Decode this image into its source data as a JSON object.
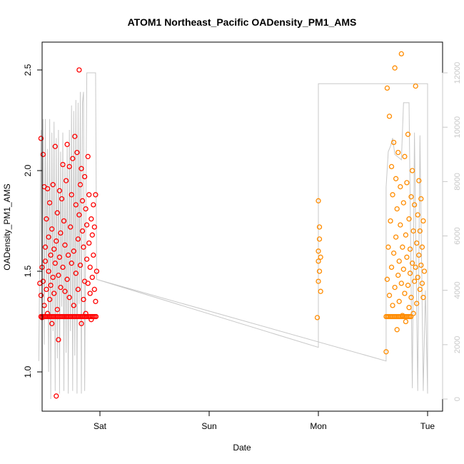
{
  "chart_data": {
    "type": "scatter",
    "title": "ATOM1 Northeast_Pacific OADensity_PM1_AMS",
    "xlabel": "Date",
    "ylabel": "OADensity_PM1_AMS",
    "x_ticks": [
      "Sat",
      "Sun",
      "Mon",
      "Tue"
    ],
    "y_ticks": [
      "1.0",
      "1.5",
      "2.0",
      "2.5"
    ],
    "ylim": [
      0.84,
      2.65
    ],
    "right_axis_ticks": [
      "0",
      "2000",
      "4000",
      "6000",
      "8000",
      "10000",
      "12000"
    ],
    "right_axis_range": [
      0,
      12500
    ],
    "grid": false,
    "legend": "none",
    "series": [
      {
        "color": "#ff0000",
        "marker": "open-circle",
        "points": [
          [
            -0.55,
            1.44
          ],
          [
            -0.54,
            1.38
          ],
          [
            -0.54,
            2.16
          ],
          [
            -0.53,
            1.52
          ],
          [
            -0.53,
            1.27
          ],
          [
            -0.52,
            2.08
          ],
          [
            -0.52,
            1.45
          ],
          [
            -0.51,
            1.92
          ],
          [
            -0.51,
            1.33
          ],
          [
            -0.5,
            1.55
          ],
          [
            -0.5,
            1.62
          ],
          [
            -0.49,
            1.41
          ],
          [
            -0.49,
            1.76
          ],
          [
            -0.48,
            1.91
          ],
          [
            -0.48,
            1.29
          ],
          [
            -0.47,
            1.5
          ],
          [
            -0.47,
            1.67
          ],
          [
            -0.46,
            1.36
          ],
          [
            -0.46,
            1.84
          ],
          [
            -0.45,
            1.58
          ],
          [
            -0.45,
            1.43
          ],
          [
            -0.44,
            1.71
          ],
          [
            -0.44,
            1.24
          ],
          [
            -0.43,
            1.93
          ],
          [
            -0.43,
            1.47
          ],
          [
            -0.42,
            1.61
          ],
          [
            -0.42,
            1.39
          ],
          [
            -0.41,
            1.54
          ],
          [
            -0.41,
            2.12
          ],
          [
            -0.4,
            0.88
          ],
          [
            -0.4,
            1.65
          ],
          [
            -0.39,
            1.31
          ],
          [
            -0.39,
            1.79
          ],
          [
            -0.38,
            1.16
          ],
          [
            -0.38,
            1.48
          ],
          [
            -0.37,
            1.9
          ],
          [
            -0.37,
            1.57
          ],
          [
            -0.36,
            1.69
          ],
          [
            -0.36,
            1.42
          ],
          [
            -0.35,
            1.86
          ],
          [
            -0.34,
            2.03
          ],
          [
            -0.34,
            1.52
          ],
          [
            -0.33,
            1.75
          ],
          [
            -0.32,
            1.4
          ],
          [
            -0.32,
            1.63
          ],
          [
            -0.31,
            1.95
          ],
          [
            -0.3,
            1.46
          ],
          [
            -0.3,
            2.13
          ],
          [
            -0.29,
            1.58
          ],
          [
            -0.28,
            1.37
          ],
          [
            -0.28,
            2.02
          ],
          [
            -0.27,
            1.72
          ],
          [
            -0.26,
            1.54
          ],
          [
            -0.26,
            1.88
          ],
          [
            -0.25,
            2.06
          ],
          [
            -0.24,
            1.6
          ],
          [
            -0.24,
            1.33
          ],
          [
            -0.23,
            2.17
          ],
          [
            -0.22,
            1.83
          ],
          [
            -0.22,
            1.49
          ],
          [
            -0.21,
            2.09
          ],
          [
            -0.2,
            1.66
          ],
          [
            -0.2,
            1.41
          ],
          [
            -0.19,
            2.5
          ],
          [
            -0.19,
            1.78
          ],
          [
            -0.18,
            1.93
          ],
          [
            -0.18,
            1.53
          ],
          [
            -0.17,
            1.24
          ],
          [
            -0.17,
            2.01
          ],
          [
            -0.16,
            1.7
          ],
          [
            -0.16,
            1.85
          ],
          [
            -0.15,
            1.36
          ],
          [
            -0.15,
            1.62
          ],
          [
            -0.14,
            1.97
          ],
          [
            -0.14,
            1.45
          ],
          [
            -0.13,
            1.29
          ],
          [
            -0.13,
            1.81
          ],
          [
            -0.12,
            1.56
          ],
          [
            -0.12,
            1.73
          ],
          [
            -0.11,
            1.44
          ],
          [
            -0.11,
            2.07
          ],
          [
            -0.1,
            1.64
          ],
          [
            -0.1,
            1.88
          ],
          [
            -0.09,
            1.39
          ],
          [
            -0.09,
            1.52
          ],
          [
            -0.08,
            1.76
          ],
          [
            -0.08,
            1.26
          ],
          [
            -0.07,
            1.68
          ],
          [
            -0.07,
            1.47
          ],
          [
            -0.06,
            1.83
          ],
          [
            -0.06,
            1.58
          ],
          [
            -0.05,
            1.41
          ],
          [
            -0.05,
            1.72
          ],
          [
            -0.04,
            1.35
          ],
          [
            -0.04,
            1.88
          ],
          [
            -0.03,
            1.5
          ]
        ],
        "constant_band": {
          "x_from": -0.54,
          "x_to": -0.03,
          "y": 1.275
        }
      },
      {
        "color": "#ff8c00",
        "marker": "open-circle",
        "points": [
          [
            1.99,
            1.27
          ],
          [
            2.0,
            1.85
          ],
          [
            2.0,
            1.6
          ],
          [
            2.0,
            1.45
          ],
          [
            2.0,
            1.55
          ],
          [
            2.01,
            1.72
          ],
          [
            2.01,
            1.5
          ],
          [
            2.01,
            1.66
          ],
          [
            2.02,
            1.4
          ],
          [
            2.02,
            1.57
          ],
          [
            2.62,
            1.1
          ],
          [
            2.63,
            1.46
          ],
          [
            2.63,
            2.41
          ],
          [
            2.64,
            1.62
          ],
          [
            2.65,
            1.38
          ],
          [
            2.65,
            2.27
          ],
          [
            2.66,
            1.75
          ],
          [
            2.67,
            1.52
          ],
          [
            2.67,
            2.02
          ],
          [
            2.68,
            1.88
          ],
          [
            2.68,
            1.33
          ],
          [
            2.69,
            2.14
          ],
          [
            2.69,
            1.59
          ],
          [
            2.7,
            2.51
          ],
          [
            2.7,
            1.42
          ],
          [
            2.71,
            1.96
          ],
          [
            2.71,
            1.67
          ],
          [
            2.72,
            1.21
          ],
          [
            2.72,
            1.81
          ],
          [
            2.73,
            1.48
          ],
          [
            2.73,
            2.09
          ],
          [
            2.74,
            1.55
          ],
          [
            2.74,
            1.35
          ],
          [
            2.75,
            1.73
          ],
          [
            2.75,
            1.92
          ],
          [
            2.76,
            1.44
          ],
          [
            2.76,
            2.58
          ],
          [
            2.77,
            1.62
          ],
          [
            2.77,
            1.28
          ],
          [
            2.78,
            1.84
          ],
          [
            2.78,
            1.51
          ],
          [
            2.79,
            2.07
          ],
          [
            2.79,
            1.39
          ],
          [
            2.8,
            1.68
          ],
          [
            2.8,
            1.25
          ],
          [
            2.81,
            1.94
          ],
          [
            2.81,
            1.57
          ],
          [
            2.82,
            1.43
          ],
          [
            2.82,
            2.18
          ],
          [
            2.83,
            1.76
          ],
          [
            2.83,
            1.32
          ],
          [
            2.84,
            1.61
          ],
          [
            2.84,
            1.49
          ],
          [
            2.85,
            1.87
          ],
          [
            2.85,
            1.37
          ],
          [
            2.86,
            2.0
          ],
          [
            2.86,
            1.54
          ],
          [
            2.87,
            1.29
          ],
          [
            2.87,
            1.7
          ],
          [
            2.88,
            1.45
          ],
          [
            2.88,
            1.83
          ],
          [
            2.89,
            2.42
          ],
          [
            2.89,
            1.52
          ],
          [
            2.9,
            1.64
          ],
          [
            2.9,
            1.34
          ],
          [
            2.91,
            1.78
          ],
          [
            2.91,
            1.47
          ],
          [
            2.92,
            1.58
          ],
          [
            2.92,
            1.95
          ],
          [
            2.93,
            1.41
          ],
          [
            2.93,
            1.7
          ],
          [
            2.94,
            1.53
          ],
          [
            2.94,
            1.86
          ],
          [
            2.95,
            1.44
          ],
          [
            2.95,
            1.62
          ],
          [
            2.96,
            1.37
          ],
          [
            2.96,
            1.75
          ],
          [
            2.97,
            1.5
          ]
        ],
        "constant_band": {
          "x_from": 2.62,
          "x_to": 2.85,
          "y": 1.275
        }
      }
    ],
    "secondary_line": {
      "color": "#c8c8c8",
      "axis": "right",
      "points": [
        [
          -0.56,
          1400
        ],
        [
          -0.54,
          9900
        ],
        [
          -0.53,
          3000
        ],
        [
          -0.52,
          10300
        ],
        [
          -0.51,
          2000
        ],
        [
          -0.5,
          10300
        ],
        [
          -0.49,
          4000
        ],
        [
          -0.48,
          9200
        ],
        [
          -0.47,
          1000
        ],
        [
          -0.46,
          10300
        ],
        [
          -0.45,
          0
        ],
        [
          -0.44,
          9800
        ],
        [
          -0.43,
          2500
        ],
        [
          -0.42,
          10200
        ],
        [
          -0.41,
          300
        ],
        [
          -0.4,
          9600
        ],
        [
          -0.39,
          1500
        ],
        [
          -0.38,
          9900
        ],
        [
          -0.37,
          200
        ],
        [
          -0.36,
          9100
        ],
        [
          -0.35,
          3400
        ],
        [
          -0.34,
          9800
        ],
        [
          -0.33,
          300
        ],
        [
          -0.32,
          8700
        ],
        [
          -0.31,
          1700
        ],
        [
          -0.3,
          9300
        ],
        [
          -0.29,
          200
        ],
        [
          -0.28,
          9900
        ],
        [
          -0.27,
          2500
        ],
        [
          -0.26,
          10800
        ],
        [
          -0.25,
          300
        ],
        [
          -0.24,
          10600
        ],
        [
          -0.23,
          1600
        ],
        [
          -0.22,
          11000
        ],
        [
          -0.21,
          200
        ],
        [
          -0.2,
          10900
        ],
        [
          -0.19,
          3500
        ],
        [
          -0.18,
          11300
        ],
        [
          -0.17,
          200
        ],
        [
          -0.16,
          10900
        ],
        [
          -0.15,
          11300
        ],
        [
          -0.14,
          300
        ],
        [
          -0.12,
          12000
        ],
        [
          -0.04,
          12000
        ],
        [
          -0.03,
          4400
        ],
        [
          2.0,
          1900
        ],
        [
          2.0,
          11600
        ],
        [
          3.0,
          11600
        ],
        [
          3.0,
          200
        ],
        [
          2.98,
          4000
        ],
        [
          2.96,
          300
        ],
        [
          2.93,
          9700
        ],
        [
          2.91,
          300
        ],
        [
          2.88,
          9800
        ],
        [
          2.86,
          400
        ],
        [
          2.84,
          7500
        ],
        [
          2.83,
          10900
        ],
        [
          2.78,
          10900
        ],
        [
          2.76,
          8800
        ],
        [
          2.7,
          9000
        ],
        [
          2.68,
          9600
        ],
        [
          2.66,
          9300
        ],
        [
          2.64,
          9100
        ],
        [
          2.62,
          7800
        ],
        [
          2.62,
          1400
        ],
        [
          -0.03,
          4400
        ]
      ]
    }
  }
}
